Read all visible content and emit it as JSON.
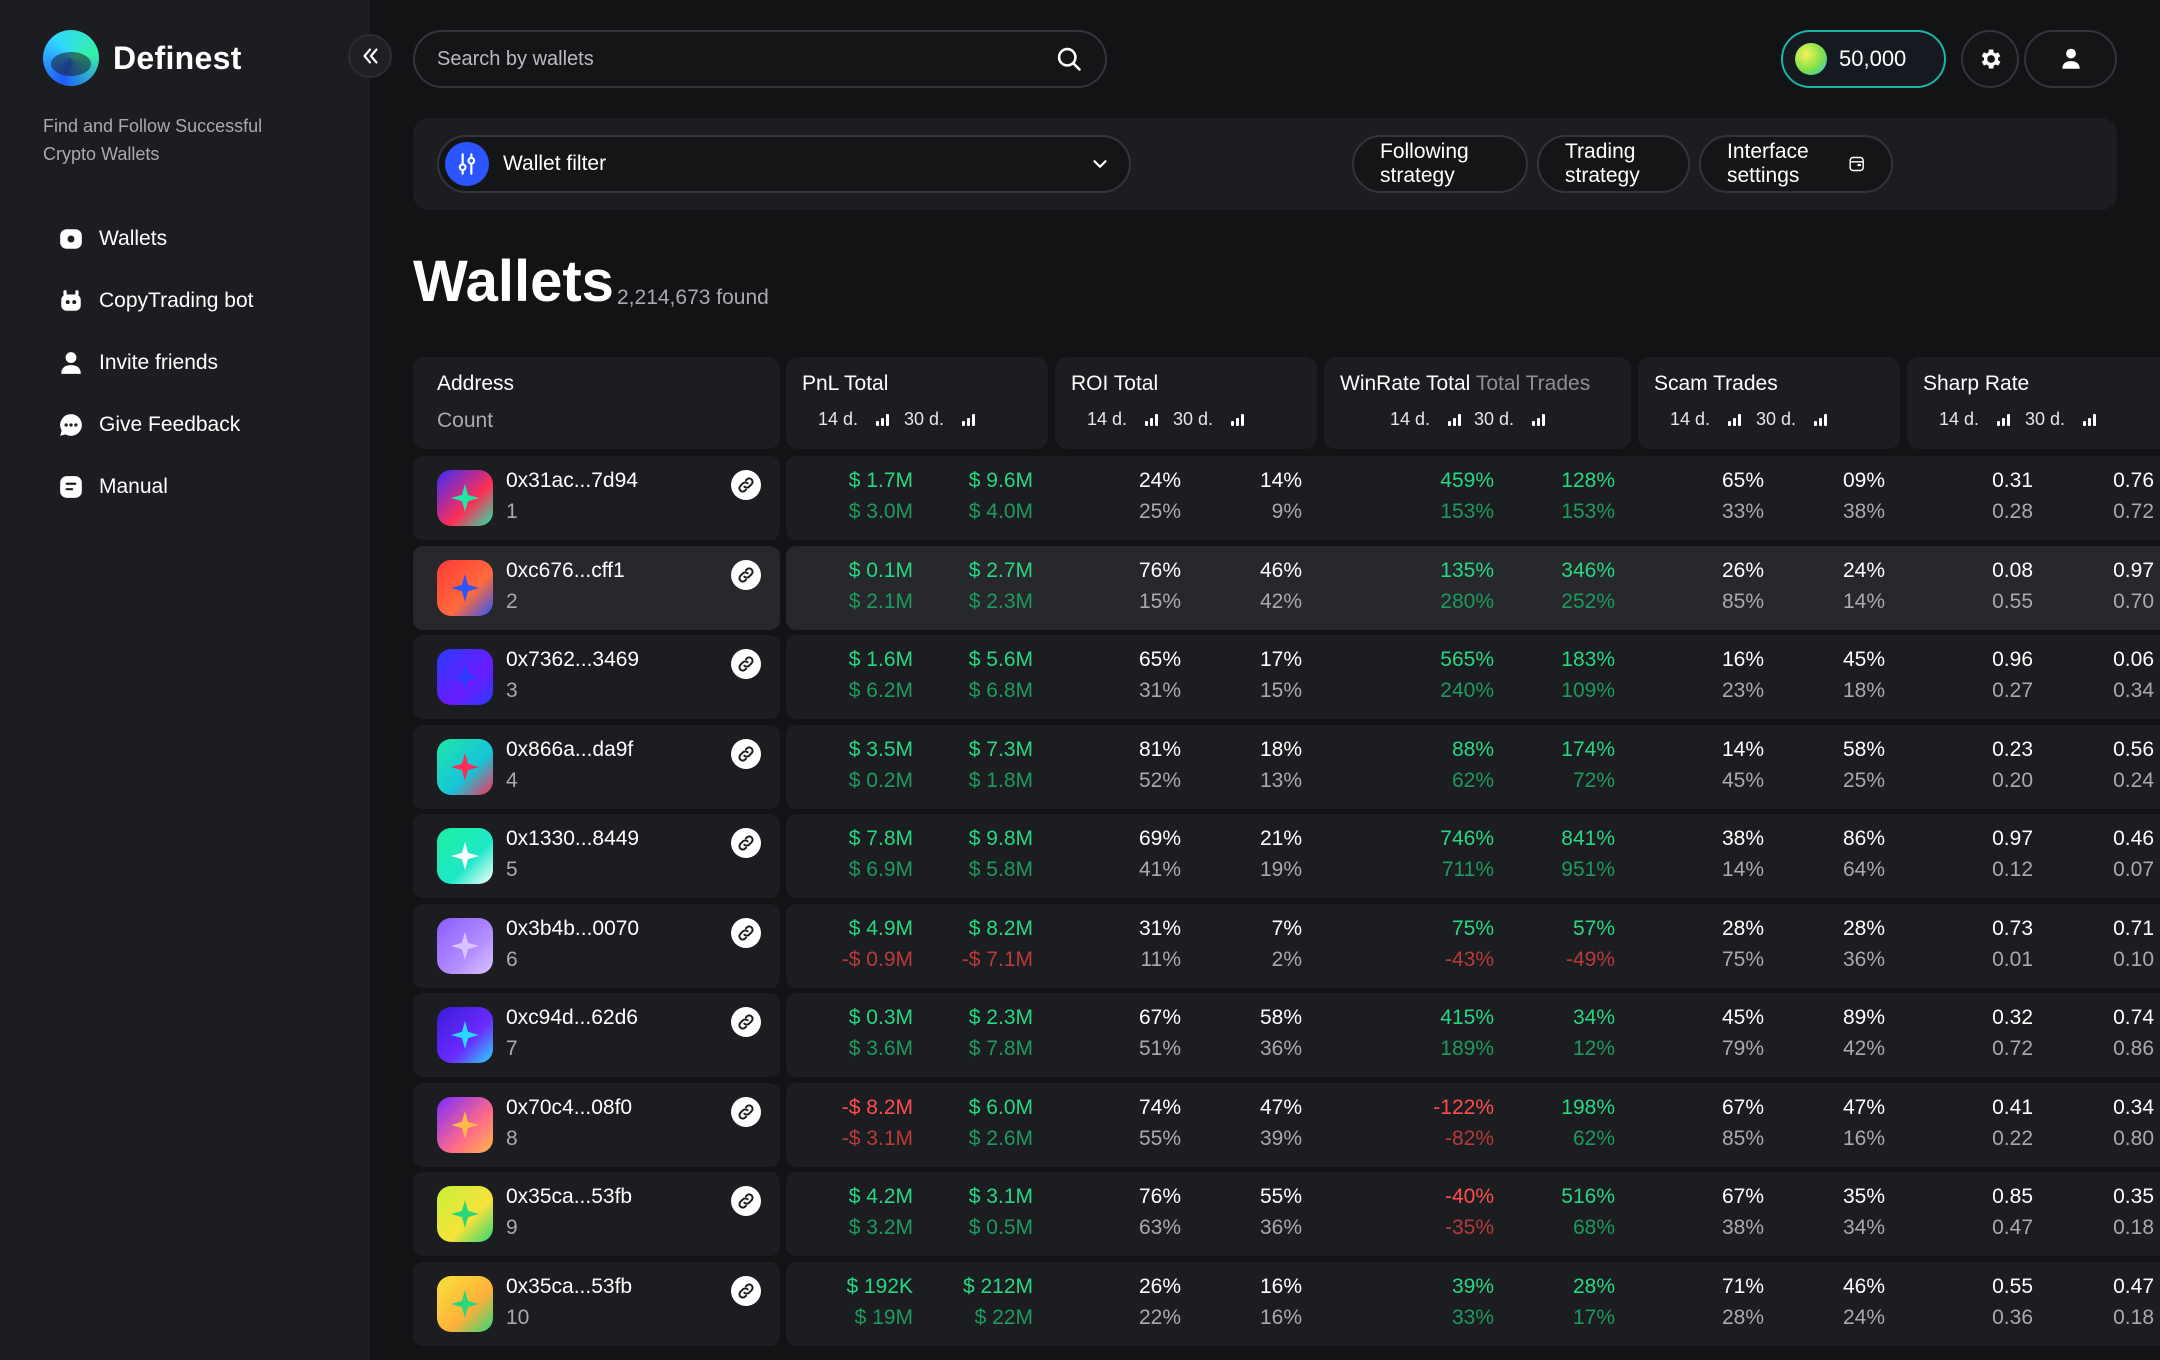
{
  "app": {
    "name": "Definest",
    "tagline": "Find and Follow Successful Crypto Wallets"
  },
  "nav": [
    {
      "label": "Wallets",
      "icon": "wallet-icon"
    },
    {
      "label": "CopyTrading bot",
      "icon": "bot-icon"
    },
    {
      "label": "Invite friends",
      "icon": "user-icon"
    },
    {
      "label": "Give Feedback",
      "icon": "chat-icon"
    },
    {
      "label": "Manual",
      "icon": "manual-icon"
    }
  ],
  "topbar": {
    "search_placeholder": "Search by wallets",
    "balance": "50,000"
  },
  "filters": {
    "wallet_filter": "Wallet filter",
    "following_strategy": "Following strategy",
    "trading_strategy": "Trading strategy",
    "interface_settings": "Interface settings"
  },
  "page": {
    "title": "Wallets",
    "found": "2,214,673 found"
  },
  "columns": {
    "address": "Address",
    "count": "Count",
    "pnl": "PnL Total",
    "roi": "ROI Total",
    "winrate": "WinRate Total",
    "total_trades": "Total Trades",
    "scam": "Scam Trades",
    "sharp": "Sharp Rate",
    "d14": "14 d.",
    "d30": "30 d."
  },
  "colors": {
    "positive": "#27d782",
    "negative": "#ff4d4d",
    "accent": "#2a55ff",
    "balance_border": "#1db4a8"
  },
  "rows": [
    {
      "address": "0x31ac...7d94",
      "index": "1",
      "avatar": [
        "#3b2cff",
        "#ff2d55",
        "#1ee8a8"
      ],
      "pnl14": [
        "$ 1.7M",
        "$ 3.0M"
      ],
      "pnl30": [
        "$ 9.6M",
        "$ 4.0M"
      ],
      "roi14": [
        "24%",
        "25%"
      ],
      "roi30": [
        "14%",
        "9%"
      ],
      "win14": [
        "459%",
        "153%"
      ],
      "win30": [
        "128%",
        "153%"
      ],
      "scam14": [
        "65%",
        "33%"
      ],
      "scam30": [
        "09%",
        "38%"
      ],
      "sharp14": [
        "0.31",
        "0.28"
      ],
      "sharp30": [
        "0.76",
        "0.72"
      ]
    },
    {
      "address": "0xc676...cff1",
      "index": "2",
      "avatar": [
        "#ff3a3a",
        "#ff6a3a",
        "#2a55ff"
      ],
      "pnl14": [
        "$ 0.1M",
        "$ 2.1M"
      ],
      "pnl30": [
        "$ 2.7M",
        "$ 2.3M"
      ],
      "roi14": [
        "76%",
        "15%"
      ],
      "roi30": [
        "46%",
        "42%"
      ],
      "win14": [
        "135%",
        "280%"
      ],
      "win30": [
        "346%",
        "252%"
      ],
      "scam14": [
        "26%",
        "85%"
      ],
      "scam30": [
        "24%",
        "14%"
      ],
      "sharp14": [
        "0.08",
        "0.55"
      ],
      "sharp30": [
        "0.97",
        "0.70"
      ]
    },
    {
      "address": "0x7362...3469",
      "index": "3",
      "avatar": [
        "#2a3bff",
        "#6a1bff",
        "#2a3bff"
      ],
      "pnl14": [
        "$ 1.6M",
        "$ 6.2M"
      ],
      "pnl30": [
        "$ 5.6M",
        "$ 6.8M"
      ],
      "roi14": [
        "65%",
        "31%"
      ],
      "roi30": [
        "17%",
        "15%"
      ],
      "win14": [
        "565%",
        "240%"
      ],
      "win30": [
        "183%",
        "109%"
      ],
      "scam14": [
        "16%",
        "23%"
      ],
      "scam30": [
        "45%",
        "18%"
      ],
      "sharp14": [
        "0.96",
        "0.27"
      ],
      "sharp30": [
        "0.06",
        "0.34"
      ]
    },
    {
      "address": "0x866a...da9f",
      "index": "4",
      "avatar": [
        "#1ee8a8",
        "#17c3d8",
        "#ff2d55"
      ],
      "pnl14": [
        "$ 3.5M",
        "$ 0.2M"
      ],
      "pnl30": [
        "$ 7.3M",
        "$ 1.8M"
      ],
      "roi14": [
        "81%",
        "52%"
      ],
      "roi30": [
        "18%",
        "13%"
      ],
      "win14": [
        "88%",
        "62%"
      ],
      "win30": [
        "174%",
        "72%"
      ],
      "scam14": [
        "14%",
        "45%"
      ],
      "scam30": [
        "58%",
        "25%"
      ],
      "sharp14": [
        "0.23",
        "0.20"
      ],
      "sharp30": [
        "0.56",
        "0.24"
      ]
    },
    {
      "address": "0x1330...8449",
      "index": "5",
      "avatar": [
        "#1ef0a0",
        "#1ee8c8",
        "#ffffff"
      ],
      "pnl14": [
        "$ 7.8M",
        "$ 6.9M"
      ],
      "pnl30": [
        "$ 9.8M",
        "$ 5.8M"
      ],
      "roi14": [
        "69%",
        "41%"
      ],
      "roi30": [
        "21%",
        "19%"
      ],
      "win14": [
        "746%",
        "711%"
      ],
      "win30": [
        "841%",
        "951%"
      ],
      "scam14": [
        "38%",
        "14%"
      ],
      "scam30": [
        "86%",
        "64%"
      ],
      "sharp14": [
        "0.97",
        "0.12"
      ],
      "sharp30": [
        "0.46",
        "0.07"
      ]
    },
    {
      "address": "0x3b4b...0070",
      "index": "6",
      "avatar": [
        "#8a5cff",
        "#b38cff",
        "#d9c4ff"
      ],
      "pnl14": [
        "$ 4.9M",
        "-$ 0.9M"
      ],
      "pnl30": [
        "$ 8.2M",
        "-$ 7.1M"
      ],
      "roi14": [
        "31%",
        "11%"
      ],
      "roi30": [
        "7%",
        "2%"
      ],
      "win14": [
        "75%",
        "-43%"
      ],
      "win30": [
        "57%",
        "-49%"
      ],
      "scam14": [
        "28%",
        "75%"
      ],
      "scam30": [
        "28%",
        "36%"
      ],
      "sharp14": [
        "0.73",
        "0.01"
      ],
      "sharp30": [
        "0.71",
        "0.10"
      ]
    },
    {
      "address": "0xc94d...62d6",
      "index": "7",
      "avatar": [
        "#3b1bd8",
        "#6a2bff",
        "#2ad8ff"
      ],
      "pnl14": [
        "$ 0.3M",
        "$ 3.6M"
      ],
      "pnl30": [
        "$ 2.3M",
        "$ 7.8M"
      ],
      "roi14": [
        "67%",
        "51%"
      ],
      "roi30": [
        "58%",
        "36%"
      ],
      "win14": [
        "415%",
        "189%"
      ],
      "win30": [
        "34%",
        "12%"
      ],
      "scam14": [
        "45%",
        "79%"
      ],
      "scam30": [
        "89%",
        "42%"
      ],
      "sharp14": [
        "0.32",
        "0.72"
      ],
      "sharp30": [
        "0.74",
        "0.86"
      ]
    },
    {
      "address": "0x70c4...08f0",
      "index": "8",
      "avatar": [
        "#7a2bff",
        "#ff6a8a",
        "#ffb84a"
      ],
      "pnl14": [
        "-$ 8.2M",
        "-$ 3.1M"
      ],
      "pnl30": [
        "$ 6.0M",
        "$ 2.6M"
      ],
      "roi14": [
        "74%",
        "55%"
      ],
      "roi30": [
        "47%",
        "39%"
      ],
      "win14": [
        "-122%",
        "-82%"
      ],
      "win30": [
        "198%",
        "62%"
      ],
      "scam14": [
        "67%",
        "85%"
      ],
      "scam30": [
        "47%",
        "16%"
      ],
      "sharp14": [
        "0.41",
        "0.22"
      ],
      "sharp30": [
        "0.34",
        "0.80"
      ]
    },
    {
      "address": "0x35ca...53fb",
      "index": "9",
      "avatar": [
        "#c8f03a",
        "#f6e23a",
        "#2ad87a"
      ],
      "pnl14": [
        "$ 4.2M",
        "$ 3.2M"
      ],
      "pnl30": [
        "$ 3.1M",
        "$ 0.5M"
      ],
      "roi14": [
        "76%",
        "63%"
      ],
      "roi30": [
        "55%",
        "36%"
      ],
      "win14": [
        "-40%",
        "-35%"
      ],
      "win30": [
        "516%",
        "68%"
      ],
      "scam14": [
        "67%",
        "38%"
      ],
      "scam30": [
        "35%",
        "34%"
      ],
      "sharp14": [
        "0.85",
        "0.47"
      ],
      "sharp30": [
        "0.35",
        "0.18"
      ]
    },
    {
      "address": "0x35ca...53fb",
      "index": "10",
      "avatar": [
        "#f6e23a",
        "#ffb03a",
        "#2ad87a"
      ],
      "pnl14": [
        "$ 192K",
        "$ 19M"
      ],
      "pnl30": [
        "$ 212M",
        "$ 22M"
      ],
      "roi14": [
        "26%",
        "22%"
      ],
      "roi30": [
        "16%",
        "16%"
      ],
      "win14": [
        "39%",
        "33%"
      ],
      "win30": [
        "28%",
        "17%"
      ],
      "scam14": [
        "71%",
        "28%"
      ],
      "scam30": [
        "46%",
        "24%"
      ],
      "sharp14": [
        "0.55",
        "0.36"
      ],
      "sharp30": [
        "0.47",
        "0.18"
      ]
    }
  ]
}
